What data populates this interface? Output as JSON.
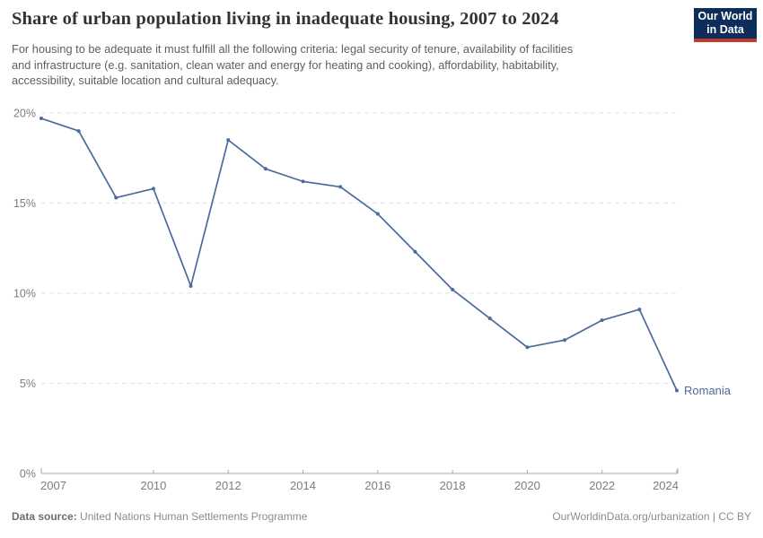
{
  "header": {
    "title": "Share of urban population living in inadequate housing, 2007 to 2024",
    "subtitle_lines": [
      "For housing to be adequate it must fulfill all the following criteria: legal security of tenure, availability of facilities",
      "and infrastructure (e.g. sanitation, clean water and energy for heating and cooking), affordability, habitability,",
      "accessibility, suitable location and cultural adequacy."
    ],
    "logo": {
      "line1": "Our World",
      "line2": "in Data",
      "bg_color": "#0d2e5a",
      "accent_color": "#c0392b"
    }
  },
  "chart_data": {
    "type": "line",
    "title": "Share of urban population living in inadequate housing, 2007 to 2024",
    "xlim": [
      2007,
      2024
    ],
    "ylim": [
      0,
      20
    ],
    "x_ticks": [
      2007,
      2010,
      2012,
      2014,
      2016,
      2018,
      2020,
      2022,
      2024
    ],
    "y_ticks": [
      0,
      5,
      10,
      15,
      20
    ],
    "y_unit": "%",
    "grid": "horizontal-dashed",
    "legend_position": "end-of-line",
    "series": [
      {
        "name": "Romania",
        "color": "#4c6a9c",
        "x": [
          2007,
          2008,
          2009,
          2010,
          2011,
          2012,
          2013,
          2014,
          2015,
          2016,
          2017,
          2018,
          2019,
          2020,
          2021,
          2022,
          2023,
          2024
        ],
        "values": [
          19.7,
          19.0,
          15.3,
          15.8,
          10.4,
          18.5,
          16.9,
          16.2,
          15.9,
          14.4,
          12.3,
          10.2,
          8.6,
          7.0,
          7.4,
          8.5,
          9.1,
          4.6
        ]
      }
    ]
  },
  "footer": {
    "datasource_label": "Data source:",
    "datasource_value": " United Nations Human Settlements Programme",
    "rights": "OurWorldinData.org/urbanization | CC BY"
  }
}
